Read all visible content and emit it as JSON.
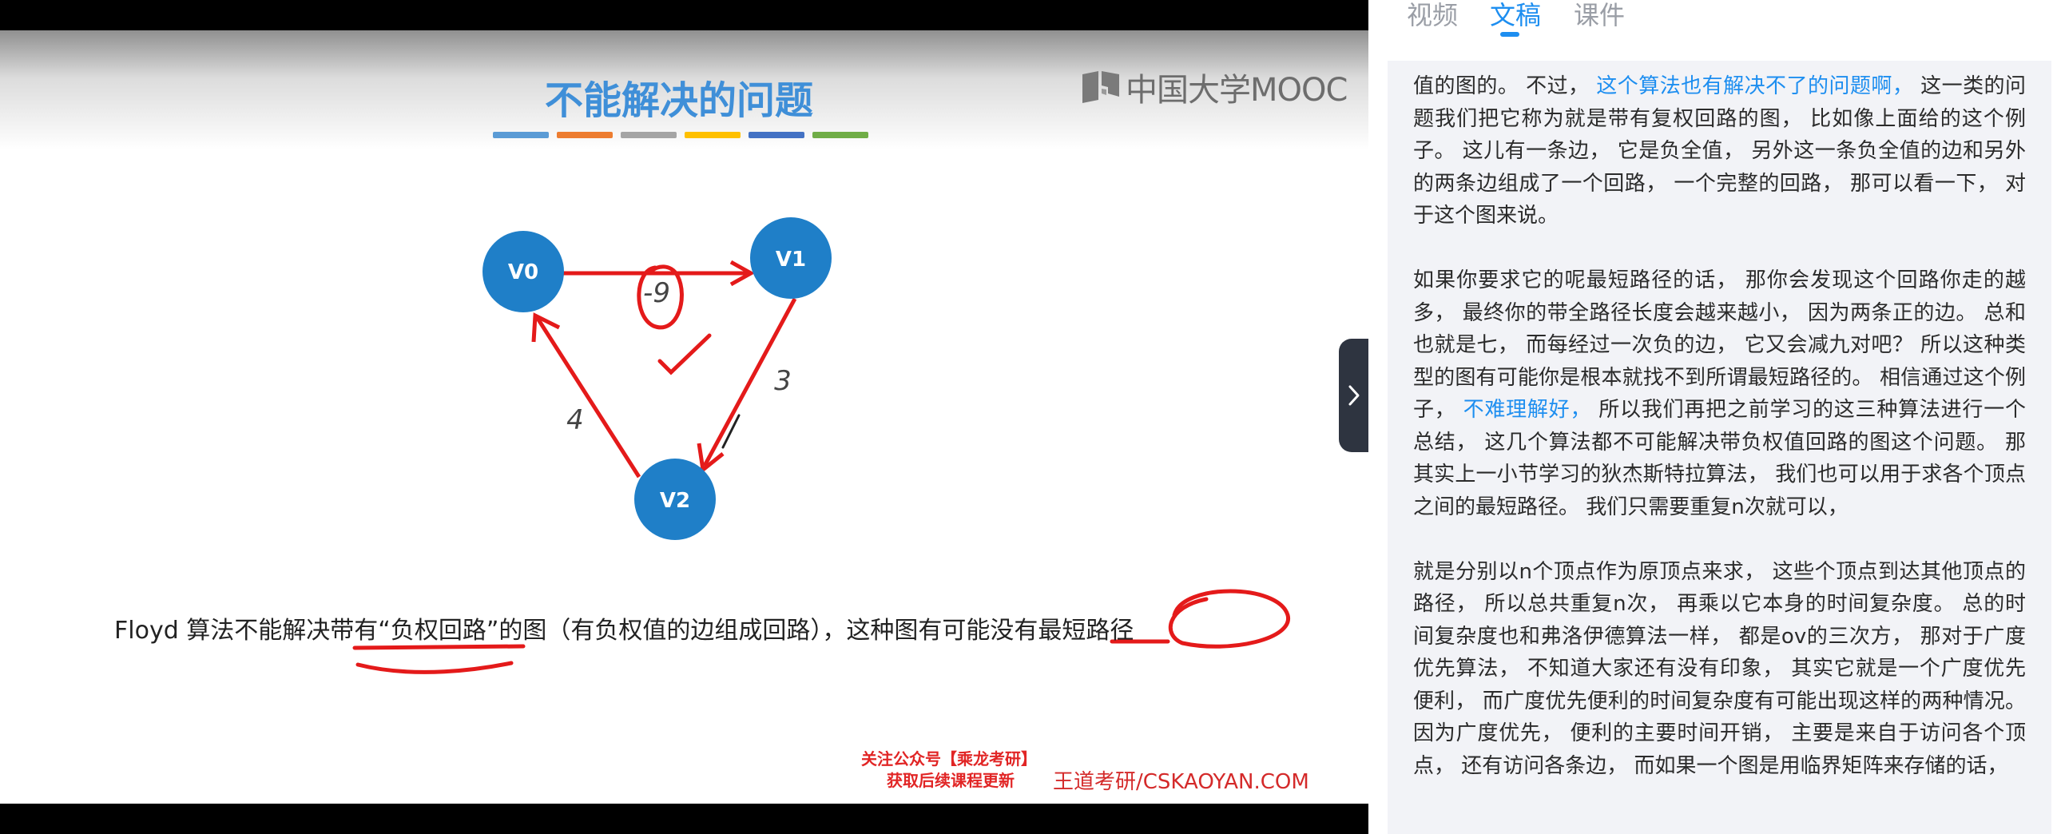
{
  "slide": {
    "title": "不能解决的问题",
    "title_bar_colors": [
      "#5b9bd5",
      "#ed7d31",
      "#a5a5a5",
      "#ffc000",
      "#4472c4",
      "#70ad47"
    ],
    "logo_text": "中国大学MOOC",
    "graph": {
      "nodes": [
        {
          "id": "V0"
        },
        {
          "id": "V1"
        },
        {
          "id": "V2"
        }
      ],
      "edges": [
        {
          "from": "V0",
          "to": "V1",
          "weight": "-9"
        },
        {
          "from": "V1",
          "to": "V2",
          "weight": "3"
        },
        {
          "from": "V2",
          "to": "V0",
          "weight": "4"
        }
      ],
      "node_color": "#1f7fc8",
      "annotation_color": "#e41a1a"
    },
    "caption": {
      "part1": "Floyd 算法不能解决",
      "part2": "带有“负权回路”",
      "part3": "的图（有负权值的边组成回路），这种图有可能",
      "part4": "没有",
      "part5": "最短路径"
    },
    "wechat_line1": "关注公众号【乘龙考研】",
    "wechat_line2": "获取后续课程更新",
    "wangdao": "王道考研/CSKAOYAN.COM"
  },
  "tabs": [
    {
      "label": "视频",
      "active": false
    },
    {
      "label": "文稿",
      "active": true
    },
    {
      "label": "课件",
      "active": false
    }
  ],
  "accent_color": "#1d8ef0",
  "transcript": {
    "p1_a": "值的图的。 不过，",
    "p1_hl": "这个算法也有解决不了的问题啊，",
    "p1_b": "这一类的问题我们把它称为就是带有复权回路的图， 比如像上面给的这个例子。 这儿有一条边， 它是负全值， 另外这一条负全值的边和另外的两条边组成了一个回路， 一个完整的回路， 那可以看一下， 对于这个图来说。",
    "p2_a": "如果你要求它的呢最短路径的话， 那你会发现这个回路你走的越多， 最终你的带全路径长度会越来越小， 因为两条正的边。 总和也就是七， 而每经过一次负的边， 它又会减九对吧？ 所以这种类型的图有可能你是根本就找不到所谓最短路径的。 相信通过这个例子，",
    "p2_hl": "不难理解好，",
    "p2_b": "所以我们再把之前学习的这三种算法进行一个总结， 这几个算法都不可能解决带负权值回路的图这个问题。 那其实上一小节学习的狄杰斯特拉算法， 我们也可以用于求各个顶点之间的最短路径。 我们只需要重复n次就可以，",
    "p3": "就是分别以n个顶点作为原顶点来求， 这些个顶点到达其他顶点的路径， 所以总共重复n次， 再乘以它本身的时间复杂度。 总的时间复杂度也和弗洛伊德算法一样， 都是ov的三次方， 那对于广度优先算法， 不知道大家还有没有印象， 其实它就是一个广度优先便利， 而广度优先便利的时间复杂度有可能出现这样的两种情况。 因为广度优先， 便利的主要时间开销， 主要是来自于访问各个顶点， 还有访问各条边， 而如果一个图是用临界矩阵来存储的话，"
  }
}
